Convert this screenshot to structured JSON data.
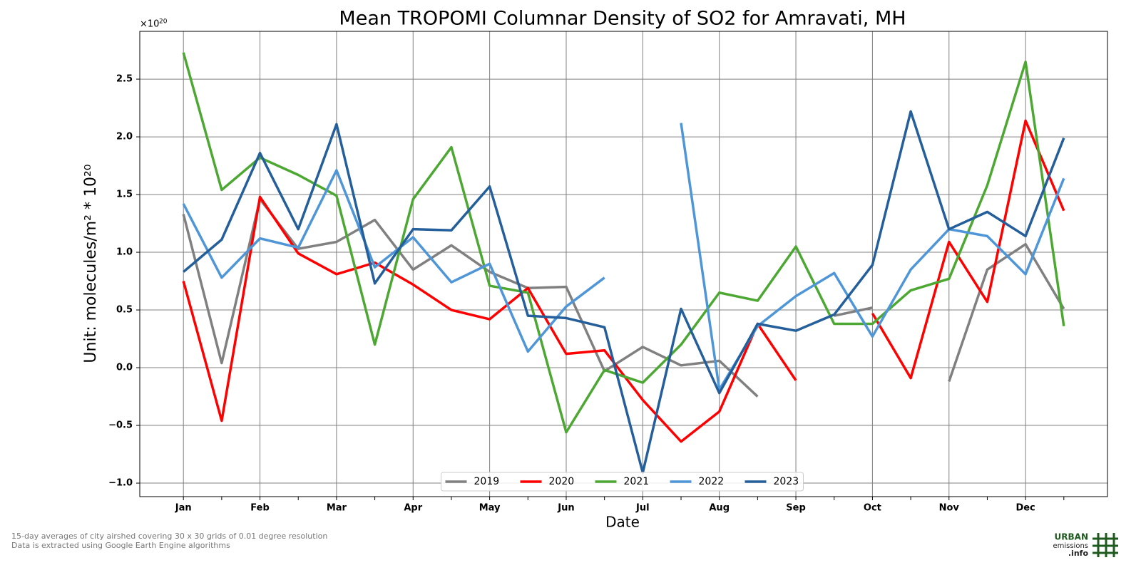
{
  "chart_data": {
    "type": "line",
    "title": "Mean TROPOMI Columnar Density of SO2 for Amravati, MH",
    "x_label": "Date",
    "y_label": "Unit: molecules/m² * 10²⁰",
    "y_multiplier": {
      "base": "×10",
      "exponent": "20"
    },
    "categories": [
      "Jan",
      null,
      "Feb",
      null,
      "Mar",
      null,
      "Apr",
      null,
      "May",
      null,
      "Jun",
      null,
      "Jul",
      null,
      "Aug",
      null,
      "Sep",
      null,
      "Oct",
      null,
      "Nov",
      null,
      "Dec",
      null
    ],
    "ylim": [
      -1.117,
      2.914
    ],
    "yticks": [
      {
        "value": -1.0,
        "label": "−1.0"
      },
      {
        "value": -0.5,
        "label": "−0.5"
      },
      {
        "value": 0,
        "label": "0.0"
      },
      0.5,
      {
        "value": 1.0,
        "label": "1.0"
      },
      1.5,
      {
        "value": 2.0,
        "label": "2.0"
      },
      2.5
    ],
    "grid": true,
    "legend": "lower center",
    "series": [
      {
        "name": "2019",
        "color": "#808080",
        "values": [
          1.33,
          0.04,
          1.46,
          1.03,
          1.09,
          1.28,
          0.85,
          1.06,
          0.83,
          0.69,
          0.7,
          -0.03,
          0.18,
          0.02,
          0.06,
          -0.25,
          null,
          0.45,
          0.52,
          null,
          -0.12,
          0.85,
          1.07,
          0.51
        ]
      },
      {
        "name": "2020",
        "color": "#ff0000",
        "values": [
          0.75,
          -0.46,
          1.48,
          0.99,
          0.81,
          0.91,
          0.72,
          0.5,
          0.42,
          0.69,
          0.12,
          0.15,
          -0.28,
          -0.64,
          -0.38,
          0.38,
          -0.11,
          null,
          0.47,
          -0.09,
          1.09,
          0.57,
          2.14,
          1.36
        ]
      },
      {
        "name": "2021",
        "color": "#4da833",
        "values": [
          2.73,
          1.54,
          1.82,
          1.67,
          1.49,
          0.2,
          1.46,
          1.91,
          0.71,
          0.65,
          -0.56,
          -0.02,
          -0.13,
          0.2,
          0.65,
          0.58,
          1.05,
          0.38,
          0.38,
          0.67,
          0.77,
          1.58,
          2.65,
          0.36
        ]
      },
      {
        "name": "2022",
        "color": "#4f96d8",
        "values": [
          1.42,
          0.78,
          1.12,
          1.04,
          1.71,
          0.87,
          1.13,
          0.74,
          0.9,
          0.14,
          0.53,
          0.78,
          null,
          2.12,
          -0.19,
          0.36,
          0.62,
          0.82,
          0.27,
          0.85,
          1.2,
          1.14,
          0.81,
          1.64
        ]
      },
      {
        "name": "2023",
        "color": "#245f9b",
        "values": [
          0.83,
          1.11,
          1.86,
          1.2,
          2.11,
          0.73,
          1.2,
          1.19,
          1.57,
          0.45,
          0.43,
          0.35,
          -0.91,
          0.51,
          -0.22,
          0.38,
          0.32,
          0.46,
          0.89,
          2.22,
          1.2,
          1.35,
          1.14,
          1.99
        ]
      }
    ]
  },
  "footer": {
    "note_1": "15-day averages of city airshed covering 30 x 30 grids of 0.01 degree resolution",
    "note_2": "Data is extracted using Google Earth Engine algorithms"
  },
  "logo": {
    "line_1": "URBAN",
    "line_2": "emissions",
    "line_3": ".info"
  }
}
